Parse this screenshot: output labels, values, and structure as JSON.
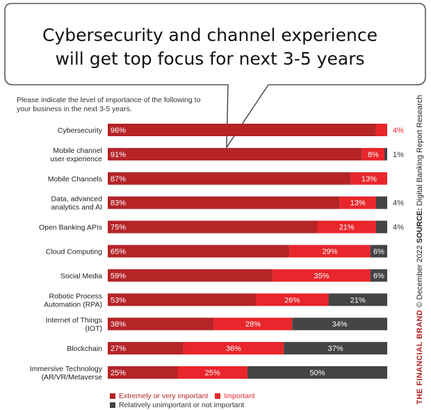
{
  "title_line1": "Cybersecurity and channel experience",
  "title_line2": "will get top focus for next 3-5 years",
  "subtitle_line1": "Please indicate the level of importance of the following to",
  "subtitle_line2": "your business in the next 3-5 years.",
  "legend": {
    "s1": "Extremely or very important",
    "s2": "Important",
    "s3": "Relatively unimportant or not important"
  },
  "colors": {
    "s1": "#b52427",
    "s2": "#e8262b",
    "s3": "#444444"
  },
  "sidebar": {
    "brand": "THE FINANCIAL BRAND",
    "copyright": " © December 2022 ",
    "source_label": "SOURCE:",
    "source_text": " Digital Banking Report Research"
  },
  "chart_data": {
    "type": "bar",
    "orientation": "horizontal",
    "stacked": true,
    "title": "Cybersecurity and channel experience will get top focus for next 3-5 years",
    "subtitle": "Please indicate the level of importance of the following to your business in the next 3-5 years.",
    "categories": [
      [
        "Cybersecurity"
      ],
      [
        "Mobile channel",
        "user experience"
      ],
      [
        "Mobile Channels"
      ],
      [
        "Data, advanced",
        "analytics and AI"
      ],
      [
        "Open Banking APIs"
      ],
      [
        "Cloud Computing"
      ],
      [
        "Social Media"
      ],
      [
        "Robotic Process",
        "Automation (RPA)"
      ],
      [
        "Internet of Things",
        "(IOT)"
      ],
      [
        "Blockchain"
      ],
      [
        "Immersive Technology",
        "(AR/VR/Metaverse"
      ]
    ],
    "series": [
      {
        "name": "Extremely or very important",
        "values": [
          96,
          91,
          87,
          83,
          75,
          65,
          59,
          53,
          38,
          27,
          25
        ]
      },
      {
        "name": "Important",
        "values": [
          4,
          8,
          13,
          13,
          21,
          29,
          35,
          26,
          28,
          36,
          25
        ]
      },
      {
        "name": "Relatively unimportant or not important",
        "values": [
          0,
          1,
          0,
          4,
          4,
          6,
          6,
          21,
          34,
          37,
          50
        ]
      }
    ],
    "value_suffix": "%",
    "xlim": [
      0,
      100
    ],
    "legend_position": "bottom"
  }
}
